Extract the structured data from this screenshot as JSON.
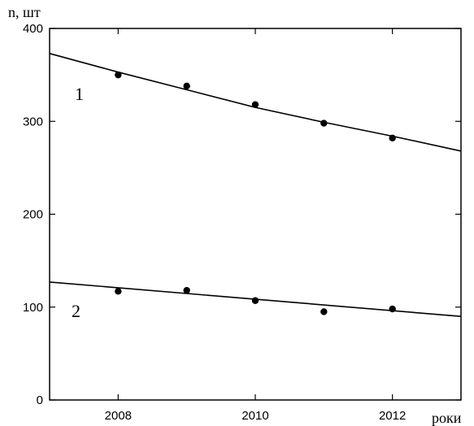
{
  "chart_data": {
    "type": "scatter",
    "ylabel": "n, шт",
    "xlabel": "роки",
    "xlim": [
      2007,
      2013
    ],
    "ylim": [
      0,
      400
    ],
    "x_ticks": [
      2008,
      2010,
      2012
    ],
    "y_ticks": [
      0,
      100,
      200,
      300,
      400
    ],
    "grid": false,
    "series": [
      {
        "name": "1",
        "x": [
          2008,
          2009,
          2010,
          2011,
          2012
        ],
        "y": [
          350,
          338,
          318,
          298,
          282
        ],
        "trend": [
          [
            2007,
            373
          ],
          [
            2008,
            353
          ],
          [
            2009,
            334
          ],
          [
            2010,
            315
          ],
          [
            2011,
            299
          ],
          [
            2012,
            284
          ],
          [
            2013,
            268
          ]
        ]
      },
      {
        "name": "2",
        "x": [
          2008,
          2009,
          2010,
          2011,
          2012
        ],
        "y": [
          117,
          118,
          107,
          95,
          98
        ],
        "trend": [
          [
            2007,
            127
          ],
          [
            2013,
            90
          ]
        ]
      }
    ],
    "colors": {
      "line": "#000000",
      "marker": "#000000"
    }
  }
}
